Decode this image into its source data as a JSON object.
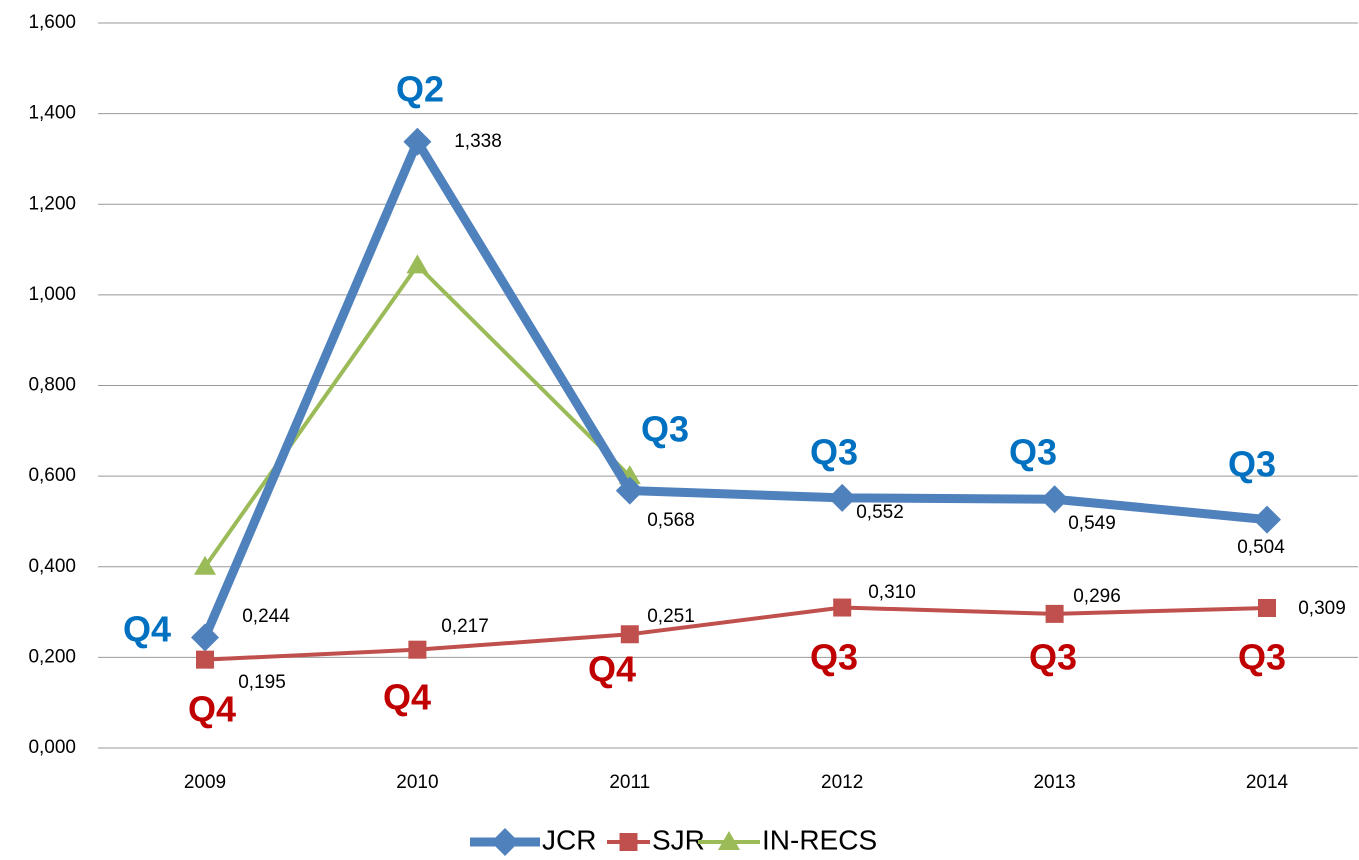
{
  "chart_data": {
    "type": "line",
    "categories": [
      "2009",
      "2010",
      "2011",
      "2012",
      "2013",
      "2014"
    ],
    "ylim": [
      0,
      1.6
    ],
    "yticks": [
      {
        "value": 0,
        "label": "0,000"
      },
      {
        "value": 0.2,
        "label": "0,200"
      },
      {
        "value": 0.4,
        "label": "0,400"
      },
      {
        "value": 0.6,
        "label": "0,600"
      },
      {
        "value": 0.8,
        "label": "0,800"
      },
      {
        "value": 1.0,
        "label": "1,000"
      },
      {
        "value": 1.2,
        "label": "1,200"
      },
      {
        "value": 1.4,
        "label": "1,400"
      },
      {
        "value": 1.6,
        "label": "1,600"
      }
    ],
    "grid": true,
    "legend": "bottom",
    "series": [
      {
        "name": "JCR",
        "color": "#4f81bd",
        "marker": "diamond",
        "values": [
          0.244,
          1.338,
          0.568,
          0.552,
          0.549,
          0.504
        ],
        "value_labels": [
          "0,244",
          "1,338",
          "0,568",
          "0,552",
          "0,549",
          "0,504"
        ],
        "annotation_color": "#0070c0",
        "annotations": [
          "Q4",
          "Q2",
          "Q3",
          "Q3",
          "Q3",
          "Q3"
        ]
      },
      {
        "name": "SJR",
        "color": "#c0504d",
        "marker": "square",
        "values": [
          0.195,
          0.217,
          0.251,
          0.31,
          0.296,
          0.309
        ],
        "value_labels": [
          "0,195",
          "0,217",
          "0,251",
          "0,310",
          "0,296",
          "0,309"
        ],
        "annotation_color": "#c00000",
        "annotations": [
          "Q4",
          "Q4",
          "Q4",
          "Q3",
          "Q3",
          "Q3"
        ]
      },
      {
        "name": "IN-RECS",
        "color": "#9bbb59",
        "marker": "triangle",
        "values": [
          0.4,
          1.065,
          0.6,
          null,
          null,
          null
        ]
      }
    ]
  }
}
